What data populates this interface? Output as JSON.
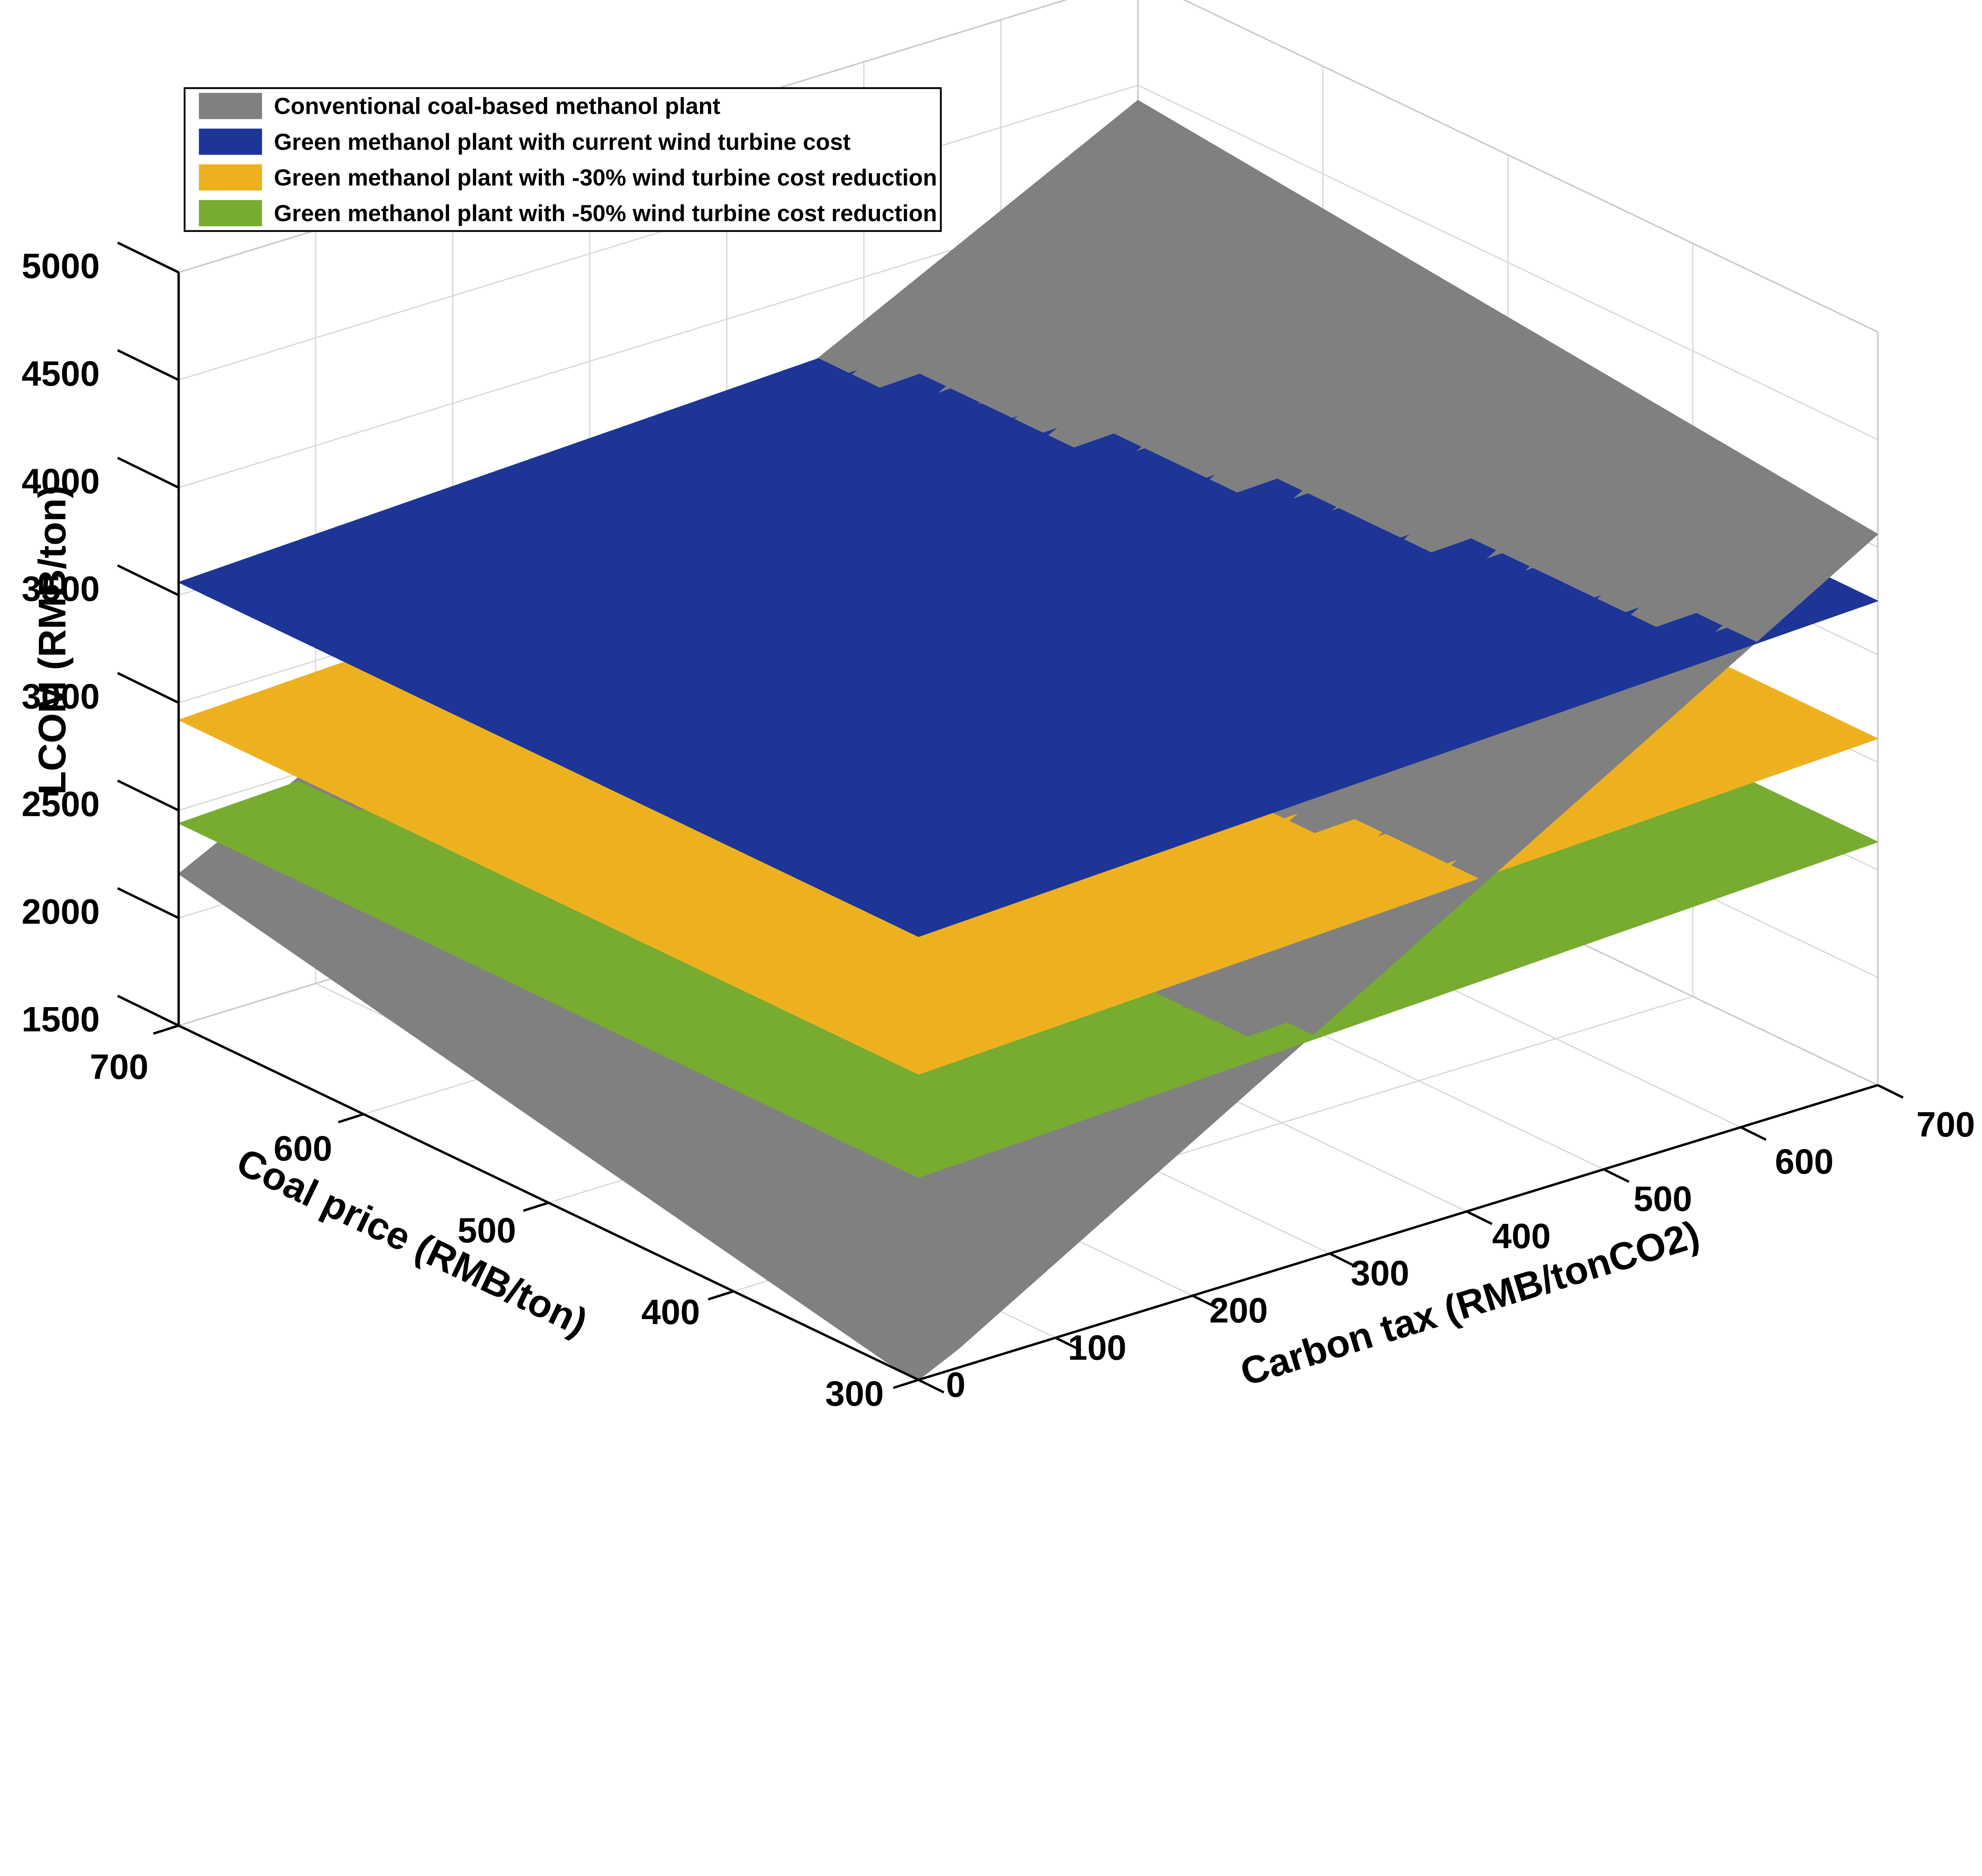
{
  "figure": {
    "background": "#ffffff"
  },
  "legend": {
    "border_color": "#000000",
    "background": "#ffffff",
    "items": [
      {
        "label": "Conventional coal-based methanol plant",
        "color": "#808080"
      },
      {
        "label": "Green methanol plant with current wind turbine cost",
        "color": "#1C3597"
      },
      {
        "label": "Green methanol plant with -30% wind turbine cost reduction",
        "color": "#EDB120"
      },
      {
        "label": "Green methanol plant with -50% wind turbine cost reduction",
        "color": "#77AC30"
      }
    ]
  },
  "chart_data": {
    "type": "surface",
    "view": "3d",
    "grid": true,
    "x_axis": {
      "label": "Carbon tax (RMB/tonCO2)",
      "min": 0,
      "max": 700,
      "ticks": [
        0,
        100,
        200,
        300,
        400,
        500,
        600,
        700
      ]
    },
    "y_axis": {
      "label": "Coal price (RMB/ton)",
      "min": 300,
      "max": 700,
      "ticks": [
        300,
        400,
        500,
        600,
        700
      ]
    },
    "z_axis": {
      "label": "LCOM (RMB/ton)",
      "min": 1500,
      "max": 5000,
      "ticks": [
        1500,
        2000,
        2500,
        3000,
        3500,
        4000,
        4500,
        5000
      ]
    },
    "surfaces": [
      {
        "name": "Conventional coal-based methanol plant",
        "color": "#808080",
        "z_corners": {
          "carbon0_coal300": 1480,
          "carbon0_coal700": 2205,
          "carbon700_coal300": 4060,
          "carbon700_coal700": 4430
        }
      },
      {
        "name": "Green methanol plant with current wind turbine cost",
        "color": "#1C3597",
        "z_corners": {
          "carbon0_coal300": 3560,
          "carbon0_coal700": 3560,
          "carbon700_coal300": 3750,
          "carbon700_coal700": 3750
        }
      },
      {
        "name": "Green methanol plant with -30% wind turbine cost reduction",
        "color": "#EDB120",
        "z_corners": {
          "carbon0_coal300": 2920,
          "carbon0_coal700": 2920,
          "carbon700_coal300": 3110,
          "carbon700_coal700": 3110
        }
      },
      {
        "name": "Green methanol plant with -50% wind turbine cost reduction",
        "color": "#77AC30",
        "z_corners": {
          "carbon0_coal300": 2440,
          "carbon0_coal700": 2440,
          "carbon700_coal300": 2630,
          "carbon700_coal700": 2630
        }
      }
    ]
  }
}
